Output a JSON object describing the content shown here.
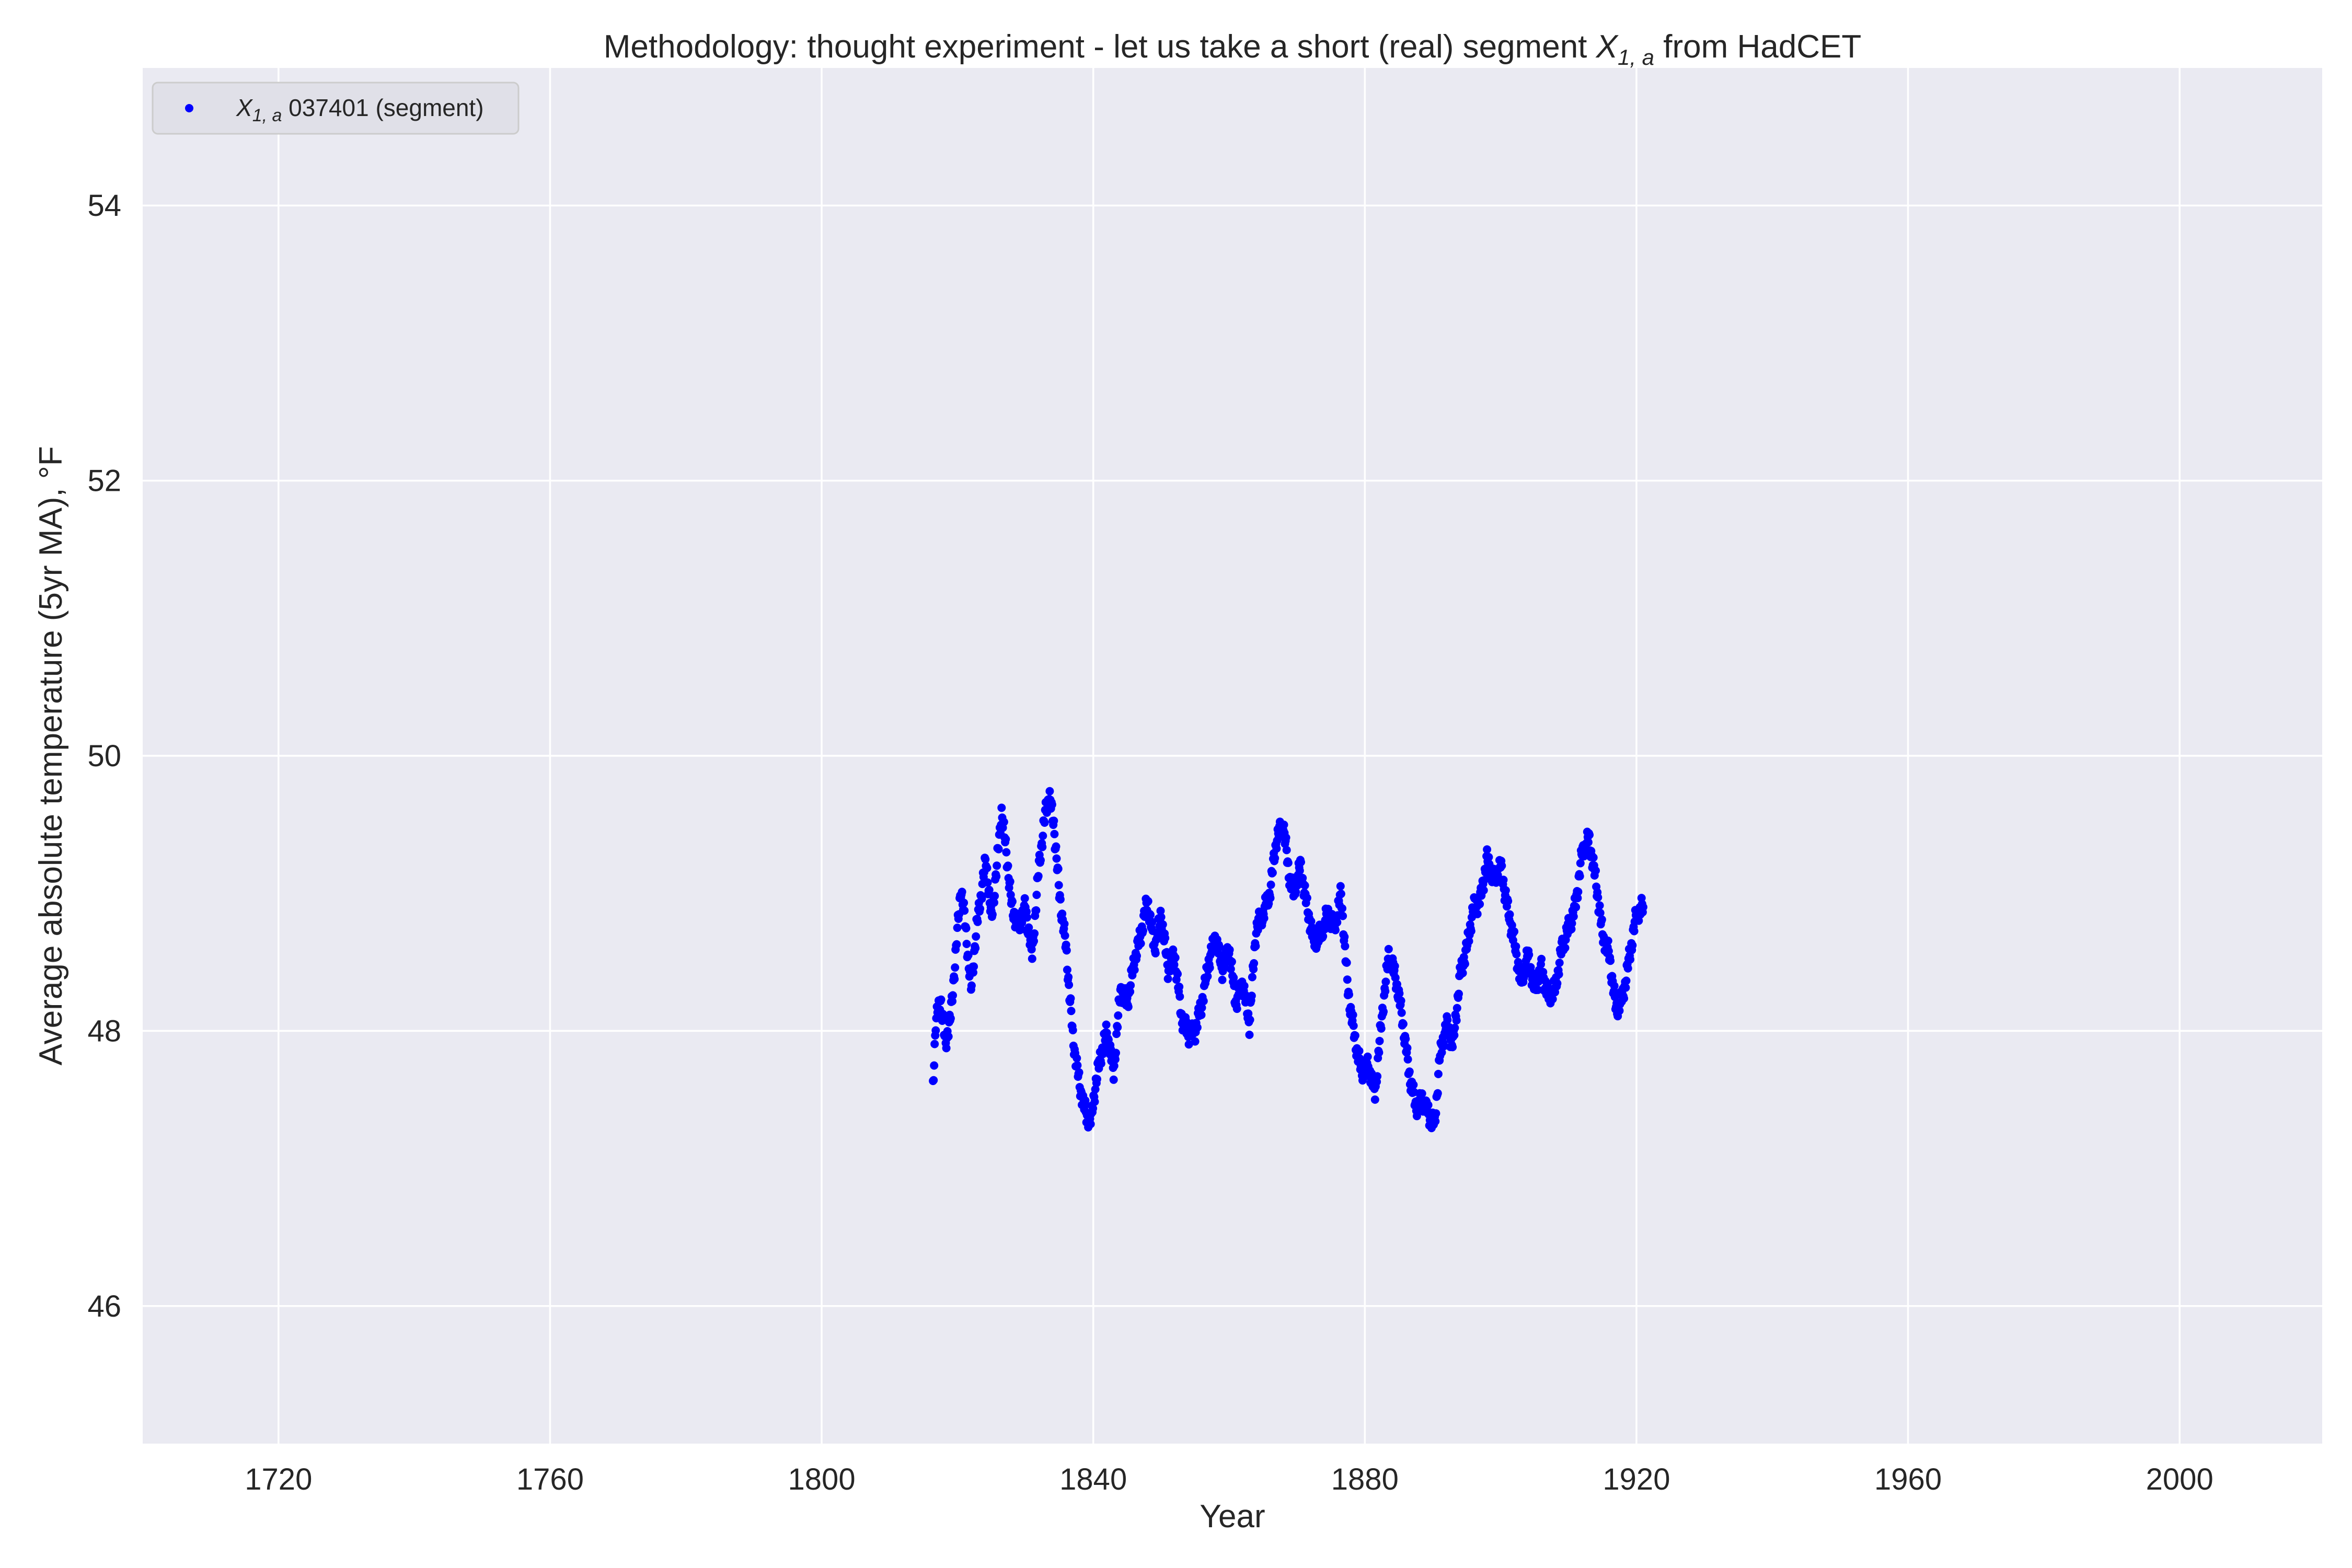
{
  "chart_data": {
    "type": "scatter",
    "title": {
      "prefix": "Methodology: thought experiment - let us take a short (real) segment ",
      "var": "X",
      "sub": "1, a",
      "suffix": " from HadCET"
    },
    "xlabel": "Year",
    "ylabel": "Average absolute temperature (5yr MA), °F",
    "xlim": [
      1700,
      2021
    ],
    "ylim": [
      45.0,
      55.0
    ],
    "xticks": [
      1720,
      1760,
      1800,
      1840,
      1880,
      1920,
      1960,
      2000
    ],
    "yticks": [
      46,
      48,
      50,
      52,
      54
    ],
    "grid": true,
    "legend": {
      "placement": "top-left",
      "entries": [
        {
          "var": "X",
          "sub": "1, a",
          "text": " 037401 (segment)"
        }
      ]
    },
    "series": [
      {
        "name": "X1,a 037401 (segment)",
        "color": "#0000ff",
        "keypoints": [
          [
            1816.4,
            47.63
          ],
          [
            1816.8,
            48.05
          ],
          [
            1817.5,
            48.25
          ],
          [
            1818.2,
            47.9
          ],
          [
            1819.0,
            48.1
          ],
          [
            1819.8,
            48.6
          ],
          [
            1820.5,
            49.05
          ],
          [
            1821.2,
            48.75
          ],
          [
            1822.0,
            48.3
          ],
          [
            1822.8,
            48.75
          ],
          [
            1823.5,
            49.0
          ],
          [
            1824.2,
            49.25
          ],
          [
            1825.0,
            48.8
          ],
          [
            1825.8,
            49.2
          ],
          [
            1826.5,
            49.6
          ],
          [
            1827.2,
            49.3
          ],
          [
            1828.0,
            48.9
          ],
          [
            1829.0,
            48.75
          ],
          [
            1830.0,
            48.9
          ],
          [
            1831.0,
            48.55
          ],
          [
            1832.0,
            49.2
          ],
          [
            1833.0,
            49.6
          ],
          [
            1833.5,
            49.72
          ],
          [
            1834.2,
            49.5
          ],
          [
            1835.0,
            49.0
          ],
          [
            1836.0,
            48.6
          ],
          [
            1837.0,
            47.95
          ],
          [
            1838.0,
            47.6
          ],
          [
            1839.0,
            47.38
          ],
          [
            1839.7,
            47.35
          ],
          [
            1840.3,
            47.6
          ],
          [
            1841.0,
            47.8
          ],
          [
            1842.0,
            48.0
          ],
          [
            1843.0,
            47.7
          ],
          [
            1844.0,
            48.3
          ],
          [
            1845.0,
            48.2
          ],
          [
            1846.0,
            48.5
          ],
          [
            1847.0,
            48.7
          ],
          [
            1848.0,
            48.95
          ],
          [
            1849.0,
            48.6
          ],
          [
            1850.0,
            48.85
          ],
          [
            1851.0,
            48.45
          ],
          [
            1852.0,
            48.55
          ],
          [
            1853.0,
            48.1
          ],
          [
            1854.0,
            47.98
          ],
          [
            1855.0,
            48.0
          ],
          [
            1856.0,
            48.2
          ],
          [
            1857.0,
            48.5
          ],
          [
            1858.0,
            48.68
          ],
          [
            1859.0,
            48.45
          ],
          [
            1860.0,
            48.6
          ],
          [
            1861.0,
            48.2
          ],
          [
            1862.0,
            48.35
          ],
          [
            1863.0,
            48.05
          ],
          [
            1864.0,
            48.75
          ],
          [
            1865.0,
            48.85
          ],
          [
            1866.0,
            49.0
          ],
          [
            1867.0,
            49.4
          ],
          [
            1868.0,
            49.5
          ],
          [
            1868.8,
            49.15
          ],
          [
            1869.5,
            49.0
          ],
          [
            1870.5,
            49.2
          ],
          [
            1871.5,
            48.9
          ],
          [
            1872.5,
            48.65
          ],
          [
            1873.5,
            48.7
          ],
          [
            1874.5,
            48.85
          ],
          [
            1875.5,
            48.75
          ],
          [
            1876.5,
            49.0
          ],
          [
            1877.5,
            48.3
          ],
          [
            1878.5,
            47.95
          ],
          [
            1879.5,
            47.7
          ],
          [
            1880.5,
            47.75
          ],
          [
            1881.5,
            47.55
          ],
          [
            1882.5,
            48.1
          ],
          [
            1883.5,
            48.55
          ],
          [
            1884.5,
            48.4
          ],
          [
            1885.5,
            48.1
          ],
          [
            1886.5,
            47.7
          ],
          [
            1887.5,
            47.45
          ],
          [
            1888.5,
            47.5
          ],
          [
            1889.5,
            47.38
          ],
          [
            1890.3,
            47.32
          ],
          [
            1891.0,
            47.8
          ],
          [
            1892.0,
            48.05
          ],
          [
            1893.0,
            47.9
          ],
          [
            1894.0,
            48.4
          ],
          [
            1895.0,
            48.6
          ],
          [
            1896.0,
            48.9
          ],
          [
            1897.0,
            48.95
          ],
          [
            1898.0,
            49.25
          ],
          [
            1899.0,
            49.1
          ],
          [
            1900.0,
            49.2
          ],
          [
            1901.0,
            48.9
          ],
          [
            1902.0,
            48.65
          ],
          [
            1903.0,
            48.35
          ],
          [
            1904.0,
            48.55
          ],
          [
            1905.0,
            48.3
          ],
          [
            1906.0,
            48.45
          ],
          [
            1907.0,
            48.25
          ],
          [
            1908.0,
            48.3
          ],
          [
            1909.0,
            48.6
          ],
          [
            1910.0,
            48.75
          ],
          [
            1911.0,
            48.9
          ],
          [
            1912.0,
            49.3
          ],
          [
            1913.0,
            49.4
          ],
          [
            1914.0,
            49.1
          ],
          [
            1915.0,
            48.7
          ],
          [
            1916.0,
            48.55
          ],
          [
            1917.0,
            48.15
          ],
          [
            1918.0,
            48.25
          ],
          [
            1919.0,
            48.55
          ],
          [
            1920.0,
            48.85
          ],
          [
            1921.0,
            48.9
          ]
        ]
      }
    ]
  }
}
